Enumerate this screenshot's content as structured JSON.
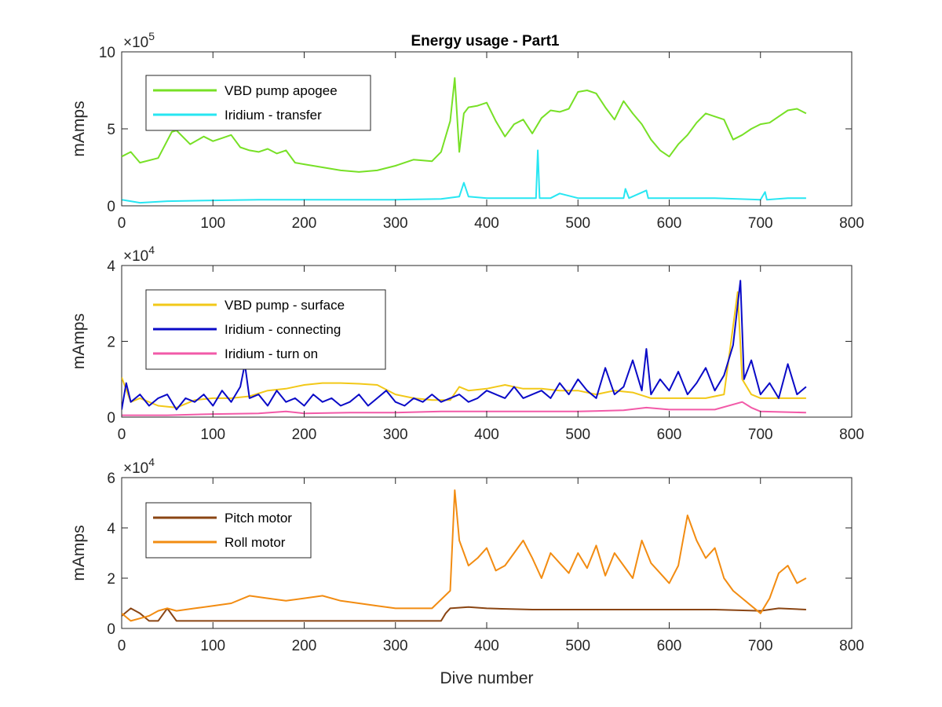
{
  "figure": {
    "title": "Energy usage - Part1",
    "xlabel": "Dive number"
  },
  "chart_data": [
    {
      "type": "line",
      "title": "Energy usage - Part1",
      "xlabel": "",
      "ylabel": "mAmps",
      "exponent_base": "×10",
      "exponent_power": "5",
      "xlim": [
        0,
        800
      ],
      "ylim": [
        0,
        10
      ],
      "xticks": [
        0,
        100,
        200,
        300,
        400,
        500,
        600,
        700,
        800
      ],
      "yticks": [
        0,
        5,
        10
      ],
      "grid": false,
      "legend": "top-left",
      "series": [
        {
          "name": "VBD pump apogee",
          "color": "#77e026",
          "x": [
            0,
            10,
            20,
            40,
            55,
            60,
            75,
            90,
            100,
            110,
            120,
            130,
            140,
            150,
            160,
            170,
            180,
            190,
            200,
            220,
            240,
            260,
            280,
            300,
            320,
            340,
            350,
            360,
            365,
            370,
            375,
            380,
            390,
            400,
            410,
            420,
            430,
            440,
            450,
            460,
            470,
            480,
            490,
            500,
            510,
            520,
            530,
            540,
            550,
            560,
            570,
            580,
            590,
            600,
            610,
            620,
            630,
            640,
            650,
            660,
            670,
            680,
            690,
            700,
            710,
            720,
            730,
            740,
            750
          ],
          "y": [
            3.2,
            3.5,
            2.8,
            3.1,
            4.8,
            4.9,
            4.0,
            4.5,
            4.2,
            4.4,
            4.6,
            3.8,
            3.6,
            3.5,
            3.7,
            3.4,
            3.6,
            2.8,
            2.7,
            2.5,
            2.3,
            2.2,
            2.3,
            2.6,
            3.0,
            2.9,
            3.5,
            5.5,
            8.3,
            3.5,
            6.0,
            6.4,
            6.5,
            6.7,
            5.5,
            4.5,
            5.3,
            5.6,
            4.7,
            5.7,
            6.2,
            6.1,
            6.3,
            7.4,
            7.5,
            7.3,
            6.4,
            5.6,
            6.8,
            6.0,
            5.3,
            4.3,
            3.6,
            3.2,
            4.0,
            4.6,
            5.4,
            6.0,
            5.8,
            5.6,
            4.3,
            4.6,
            5.0,
            5.3,
            5.4,
            5.8,
            6.2,
            6.3,
            6.0
          ]
        },
        {
          "name": "Iridium - transfer",
          "color": "#27e6f2",
          "x": [
            0,
            20,
            50,
            100,
            150,
            200,
            250,
            300,
            350,
            370,
            375,
            380,
            400,
            450,
            454,
            456,
            458,
            470,
            480,
            500,
            550,
            552,
            556,
            575,
            577,
            600,
            650,
            700,
            705,
            707,
            730,
            750
          ],
          "y": [
            0.4,
            0.2,
            0.3,
            0.35,
            0.4,
            0.4,
            0.4,
            0.4,
            0.45,
            0.6,
            1.5,
            0.6,
            0.5,
            0.5,
            0.5,
            3.6,
            0.5,
            0.5,
            0.8,
            0.5,
            0.5,
            1.1,
            0.5,
            1.0,
            0.5,
            0.5,
            0.5,
            0.4,
            0.9,
            0.4,
            0.5,
            0.5
          ]
        }
      ]
    },
    {
      "type": "line",
      "title": "",
      "xlabel": "",
      "ylabel": "mAmps",
      "exponent_base": "×10",
      "exponent_power": "4",
      "xlim": [
        0,
        800
      ],
      "ylim": [
        0,
        4
      ],
      "xticks": [
        0,
        100,
        200,
        300,
        400,
        500,
        600,
        700,
        800
      ],
      "yticks": [
        0,
        2,
        4
      ],
      "grid": false,
      "legend": "top-left",
      "series": [
        {
          "name": "VBD pump - surface",
          "color": "#f2c818",
          "x": [
            0,
            10,
            20,
            40,
            60,
            80,
            100,
            120,
            140,
            160,
            180,
            200,
            220,
            240,
            260,
            280,
            300,
            320,
            340,
            360,
            370,
            380,
            400,
            420,
            440,
            460,
            480,
            500,
            520,
            540,
            560,
            580,
            600,
            620,
            640,
            660,
            675,
            680,
            690,
            700,
            720,
            750
          ],
          "y": [
            1.05,
            0.4,
            0.5,
            0.3,
            0.25,
            0.45,
            0.5,
            0.5,
            0.55,
            0.7,
            0.75,
            0.85,
            0.9,
            0.9,
            0.88,
            0.85,
            0.6,
            0.5,
            0.45,
            0.45,
            0.8,
            0.7,
            0.75,
            0.85,
            0.75,
            0.75,
            0.7,
            0.7,
            0.6,
            0.7,
            0.65,
            0.5,
            0.5,
            0.5,
            0.5,
            0.6,
            3.3,
            1.0,
            0.6,
            0.5,
            0.5,
            0.5
          ]
        },
        {
          "name": "Iridium - connecting",
          "color": "#0a0ac7",
          "x": [
            0,
            5,
            10,
            20,
            30,
            40,
            50,
            60,
            70,
            80,
            90,
            100,
            110,
            120,
            130,
            135,
            140,
            150,
            160,
            170,
            180,
            190,
            200,
            210,
            220,
            230,
            240,
            250,
            260,
            270,
            280,
            290,
            300,
            310,
            320,
            330,
            340,
            350,
            360,
            370,
            380,
            390,
            400,
            410,
            420,
            430,
            440,
            450,
            460,
            470,
            480,
            490,
            500,
            510,
            520,
            530,
            540,
            550,
            560,
            570,
            575,
            580,
            590,
            600,
            610,
            620,
            630,
            640,
            650,
            660,
            670,
            678,
            682,
            690,
            700,
            710,
            720,
            730,
            740,
            750
          ],
          "y": [
            0.2,
            0.9,
            0.4,
            0.6,
            0.3,
            0.5,
            0.6,
            0.2,
            0.5,
            0.4,
            0.6,
            0.3,
            0.7,
            0.4,
            0.8,
            1.4,
            0.5,
            0.6,
            0.3,
            0.7,
            0.4,
            0.5,
            0.3,
            0.6,
            0.4,
            0.5,
            0.3,
            0.4,
            0.6,
            0.3,
            0.5,
            0.7,
            0.4,
            0.3,
            0.5,
            0.4,
            0.6,
            0.4,
            0.5,
            0.6,
            0.4,
            0.5,
            0.7,
            0.6,
            0.5,
            0.8,
            0.5,
            0.6,
            0.7,
            0.5,
            0.9,
            0.6,
            1.0,
            0.7,
            0.5,
            1.3,
            0.6,
            0.8,
            1.5,
            0.7,
            1.8,
            0.6,
            1.0,
            0.7,
            1.2,
            0.6,
            0.9,
            1.3,
            0.7,
            1.1,
            1.9,
            3.6,
            1.0,
            1.5,
            0.6,
            0.9,
            0.5,
            1.4,
            0.6,
            0.8
          ]
        },
        {
          "name": "Iridium - turn on",
          "color": "#f25aa8",
          "x": [
            0,
            50,
            100,
            150,
            180,
            200,
            250,
            300,
            350,
            400,
            450,
            500,
            550,
            575,
            600,
            650,
            680,
            690,
            700,
            750
          ],
          "y": [
            0.05,
            0.05,
            0.08,
            0.1,
            0.15,
            0.1,
            0.12,
            0.12,
            0.15,
            0.15,
            0.15,
            0.15,
            0.18,
            0.25,
            0.2,
            0.2,
            0.4,
            0.25,
            0.15,
            0.12
          ]
        }
      ]
    },
    {
      "type": "line",
      "title": "",
      "xlabel": "Dive number",
      "ylabel": "mAmps",
      "exponent_base": "×10",
      "exponent_power": "4",
      "xlim": [
        0,
        800
      ],
      "ylim": [
        0,
        6
      ],
      "xticks": [
        0,
        100,
        200,
        300,
        400,
        500,
        600,
        700,
        800
      ],
      "yticks": [
        0,
        2,
        4,
        6
      ],
      "grid": false,
      "legend": "top-left",
      "series": [
        {
          "name": "Pitch motor",
          "color": "#8a4513",
          "x": [
            0,
            10,
            20,
            30,
            40,
            50,
            60,
            80,
            100,
            150,
            200,
            250,
            300,
            350,
            355,
            360,
            380,
            400,
            450,
            500,
            550,
            600,
            650,
            700,
            720,
            750
          ],
          "y": [
            0.5,
            0.8,
            0.6,
            0.3,
            0.3,
            0.8,
            0.3,
            0.3,
            0.3,
            0.3,
            0.3,
            0.3,
            0.3,
            0.3,
            0.6,
            0.8,
            0.85,
            0.8,
            0.75,
            0.75,
            0.75,
            0.75,
            0.75,
            0.7,
            0.8,
            0.75
          ]
        },
        {
          "name": "Roll motor",
          "color": "#f28c12",
          "x": [
            0,
            10,
            20,
            30,
            40,
            50,
            60,
            80,
            100,
            120,
            140,
            160,
            180,
            200,
            220,
            240,
            260,
            280,
            300,
            320,
            340,
            360,
            365,
            370,
            380,
            390,
            400,
            410,
            420,
            430,
            440,
            450,
            460,
            470,
            480,
            490,
            500,
            510,
            520,
            530,
            540,
            550,
            560,
            570,
            580,
            590,
            600,
            610,
            620,
            630,
            640,
            650,
            660,
            670,
            680,
            690,
            700,
            710,
            720,
            730,
            740,
            750
          ],
          "y": [
            0.6,
            0.3,
            0.4,
            0.5,
            0.7,
            0.8,
            0.7,
            0.8,
            0.9,
            1.0,
            1.3,
            1.2,
            1.1,
            1.2,
            1.3,
            1.1,
            1.0,
            0.9,
            0.8,
            0.8,
            0.8,
            1.5,
            5.5,
            3.5,
            2.5,
            2.8,
            3.2,
            2.3,
            2.5,
            3.0,
            3.5,
            2.8,
            2.0,
            3.0,
            2.6,
            2.2,
            3.0,
            2.4,
            3.3,
            2.1,
            3.0,
            2.5,
            2.0,
            3.5,
            2.6,
            2.2,
            1.8,
            2.5,
            4.5,
            3.5,
            2.8,
            3.2,
            2.0,
            1.5,
            1.2,
            0.9,
            0.6,
            1.2,
            2.2,
            2.5,
            1.8,
            2.0
          ]
        }
      ]
    }
  ]
}
